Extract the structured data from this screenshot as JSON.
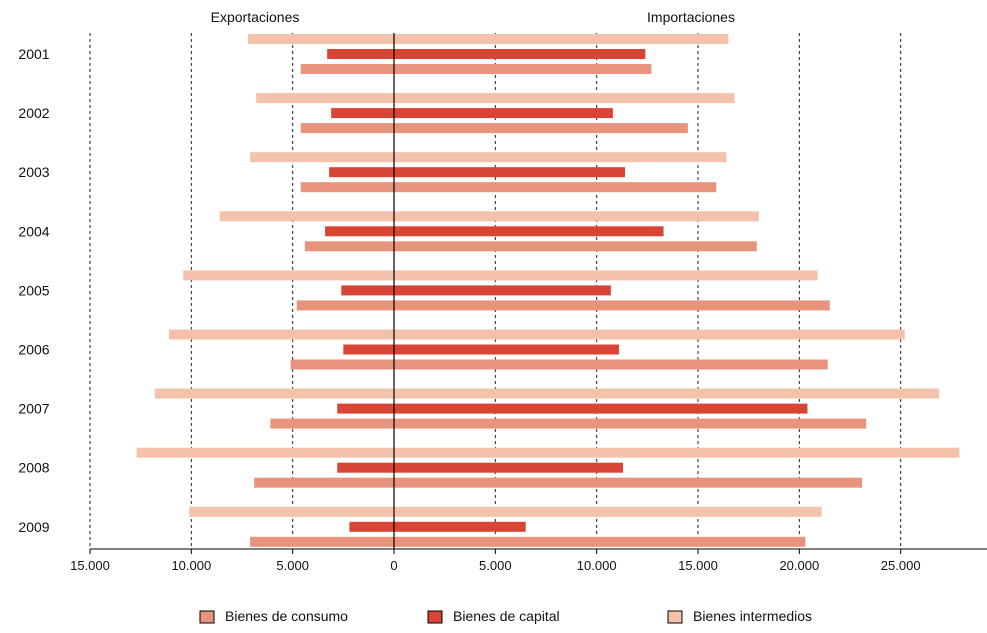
{
  "chart_data": {
    "type": "bar",
    "orientation": "horizontal",
    "diverging": true,
    "side_titles": {
      "left": "Exportaciones",
      "right": "Importaciones"
    },
    "categories": [
      "2001",
      "2002",
      "2003",
      "2004",
      "2005",
      "2006",
      "2007",
      "2008",
      "2009"
    ],
    "xlim": [
      -15000,
      30000
    ],
    "x_ticks": [
      -15000,
      -10000,
      -5000,
      0,
      5000,
      10000,
      15000,
      20000,
      25000
    ],
    "x_tick_labels": [
      "15.000",
      "10.000",
      "5.000",
      "0",
      "5.000",
      "10.000",
      "15.000",
      "20.000",
      "25.000"
    ],
    "grid": "vertical dashed",
    "legend_position": "bottom",
    "series": [
      {
        "name": "Bienes intermedios",
        "color": "#f4c1ab",
        "exportaciones": [
          7200,
          6800,
          7100,
          8600,
          10400,
          11100,
          11800,
          12700,
          10100
        ],
        "importaciones": [
          16500,
          16800,
          16400,
          18000,
          20900,
          25200,
          26900,
          27900,
          21100
        ]
      },
      {
        "name": "Bienes de capital",
        "color": "#d94535",
        "exportaciones": [
          3300,
          3100,
          3200,
          3400,
          2600,
          2500,
          2800,
          2800,
          2200
        ],
        "importaciones": [
          12400,
          10800,
          11400,
          13300,
          10700,
          11100,
          20400,
          11300,
          6500
        ]
      },
      {
        "name": "Bienes de consumo",
        "color": "#e8937b",
        "exportaciones": [
          4600,
          4600,
          4600,
          4400,
          4800,
          5100,
          6100,
          6900,
          7100
        ],
        "importaciones": [
          12700,
          14500,
          15900,
          17900,
          21500,
          21400,
          23300,
          23100,
          20300
        ]
      }
    ],
    "legend": [
      {
        "label": "Bienes de consumo",
        "color": "#e8937b"
      },
      {
        "label": "Bienes de capital",
        "color": "#d94535"
      },
      {
        "label": "Bienes intermedios",
        "color": "#f4c1ab"
      }
    ]
  }
}
